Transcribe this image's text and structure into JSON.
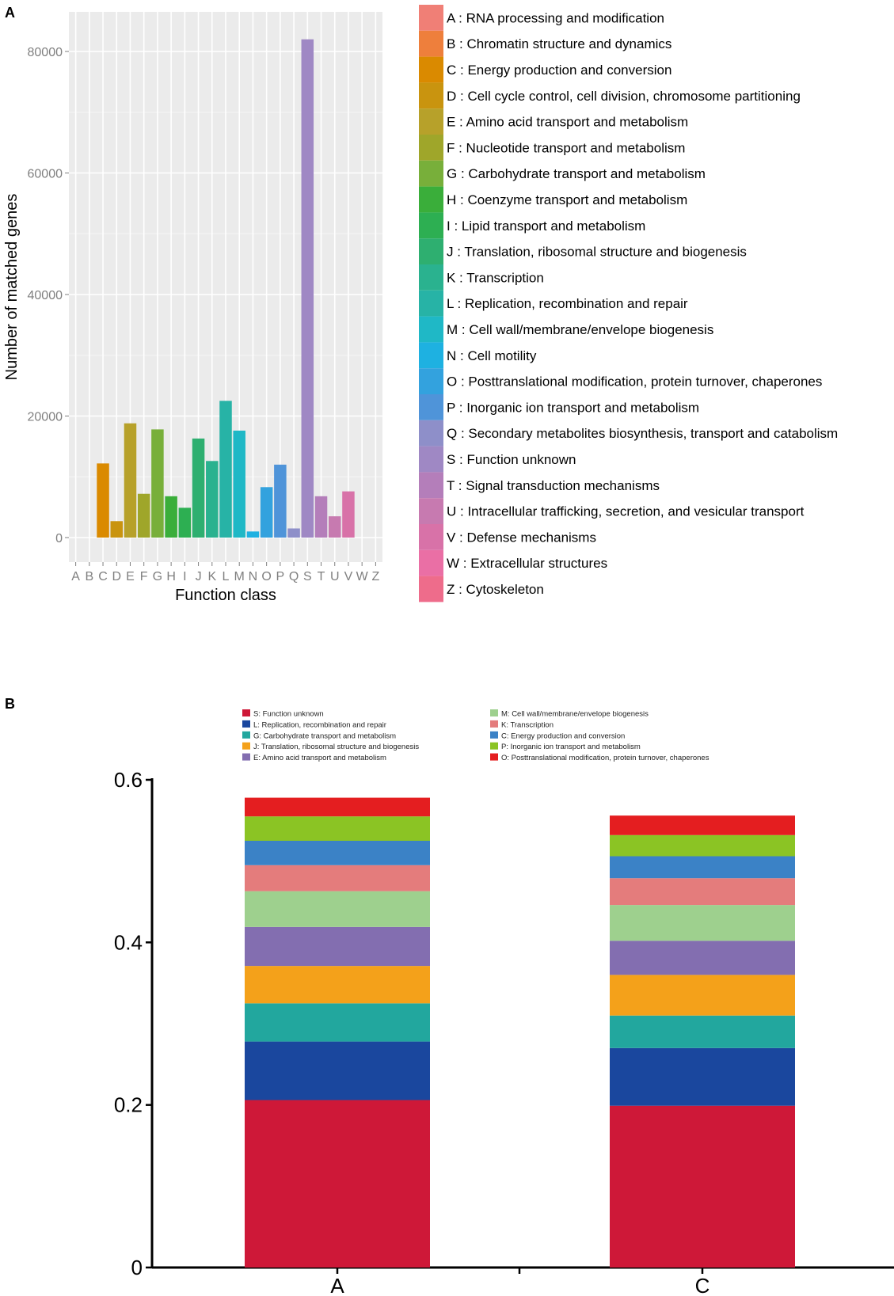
{
  "panel_a_label": "A",
  "panel_b_label": "B",
  "chart_data": [
    {
      "type": "bar",
      "xlabel": "Function class",
      "ylabel": "Number of matched genes",
      "ylim": [
        0,
        85000
      ],
      "yticks": [
        0,
        20000,
        40000,
        60000,
        80000
      ],
      "grid": true,
      "legend_position": "right",
      "categories": [
        "A",
        "B",
        "C",
        "D",
        "E",
        "F",
        "G",
        "H",
        "I",
        "J",
        "K",
        "L",
        "M",
        "N",
        "O",
        "P",
        "Q",
        "S",
        "T",
        "U",
        "V",
        "W",
        "Z"
      ],
      "values": [
        0,
        0,
        12200,
        2700,
        18800,
        7200,
        17800,
        6800,
        4900,
        16300,
        12600,
        22500,
        17600,
        1000,
        8300,
        12000,
        1500,
        82000,
        6800,
        3500,
        7600,
        0,
        0
      ],
      "colors": [
        "#F07F76",
        "#EE7F3C",
        "#DA8A00",
        "#C9940F",
        "#B7A12A",
        "#9FA62A",
        "#78AF3A",
        "#3AAE3A",
        "#2DAF52",
        "#2EAF70",
        "#2AB28F",
        "#27B3A6",
        "#1FB8C6",
        "#1EB1E1",
        "#33A2DE",
        "#4F94D9",
        "#8E8FC9",
        "#9F88C4",
        "#B47EBA",
        "#C77AB0",
        "#D872A8",
        "#EA6FA5",
        "#EE6C8B"
      ],
      "legend": [
        "A : RNA processing and modification",
        "B : Chromatin structure and dynamics",
        "C : Energy production and conversion",
        "D : Cell cycle control, cell division, chromosome partitioning",
        "E : Amino acid transport and metabolism",
        "F : Nucleotide transport and metabolism",
        "G : Carbohydrate transport and metabolism",
        "H : Coenzyme transport and metabolism",
        "I : Lipid transport and metabolism",
        "J : Translation, ribosomal structure and biogenesis",
        "K : Transcription",
        "L : Replication, recombination and repair",
        "M : Cell wall/membrane/envelope biogenesis",
        "N : Cell motility",
        "O : Posttranslational modification, protein turnover, chaperones",
        "P : Inorganic ion transport and metabolism",
        "Q : Secondary metabolites biosynthesis, transport and catabolism",
        "S : Function unknown",
        "T : Signal transduction mechanisms",
        "U : Intracellular trafficking, secretion, and vesicular transport",
        "V : Defense mechanisms",
        "W : Extracellular structures",
        "Z : Cytoskeleton"
      ]
    },
    {
      "type": "stacked-bar",
      "categories": [
        "A",
        "C"
      ],
      "ylim": [
        0,
        0.6
      ],
      "yticks": [
        "0",
        "0.2",
        "0.4",
        "0.6"
      ],
      "legend_position": "top",
      "series": [
        {
          "name": "S: Function unknown",
          "color": "#CE1838",
          "values": [
            0.206,
            0.199
          ]
        },
        {
          "name": "L: Replication, recombination and repair",
          "color": "#1A479E",
          "values": [
            0.072,
            0.071
          ]
        },
        {
          "name": "G: Carbohydrate transport and metabolism",
          "color": "#22A79E",
          "values": [
            0.047,
            0.04
          ]
        },
        {
          "name": "J: Translation, ribosomal structure and biogenesis",
          "color": "#F4A11A",
          "values": [
            0.046,
            0.05
          ]
        },
        {
          "name": "E: Amino acid transport and metabolism",
          "color": "#836EB0",
          "values": [
            0.048,
            0.042
          ]
        },
        {
          "name": "M: Cell wall/membrane/envelope biogenesis",
          "color": "#9ED08E",
          "values": [
            0.044,
            0.044
          ]
        },
        {
          "name": "K: Transcription",
          "color": "#E47C7C",
          "values": [
            0.032,
            0.033
          ]
        },
        {
          "name": "C: Energy production and conversion",
          "color": "#3B82C6",
          "values": [
            0.03,
            0.027
          ]
        },
        {
          "name": "P: Inorganic ion transport and metabolism",
          "color": "#8BC424",
          "values": [
            0.03,
            0.026
          ]
        },
        {
          "name": "O: Posttranslational modification, protein turnover, chaperones",
          "color": "#E41E20",
          "values": [
            0.023,
            0.024
          ]
        }
      ],
      "legend_order": [
        "S: Function unknown",
        "L: Replication, recombination and repair",
        "G: Carbohydrate transport and metabolism",
        "J: Translation, ribosomal structure and biogenesis",
        "E: Amino acid transport and metabolism",
        "M: Cell wall/membrane/envelope biogenesis",
        "K: Transcription",
        "C: Energy production and conversion",
        "P: Inorganic ion transport and metabolism",
        "O: Posttranslational modification, protein turnover, chaperones"
      ]
    }
  ]
}
